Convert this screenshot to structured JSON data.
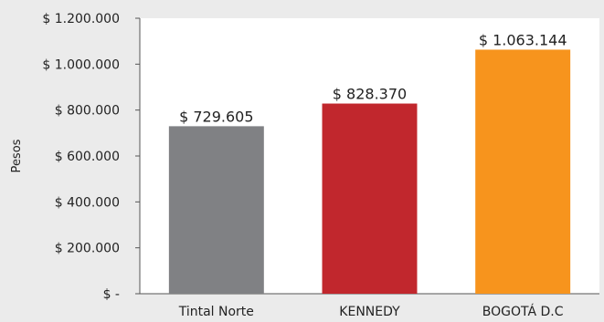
{
  "chart_data": {
    "type": "bar",
    "categories": [
      "Tintal Norte",
      "KENNEDY",
      "BOGOTÁ D.C"
    ],
    "values": [
      729605,
      828370,
      1063144
    ],
    "data_labels": [
      "$ 729.605",
      "$ 828.370",
      "$ 1.063.144"
    ],
    "colors": [
      "#808184",
      "#c1272d",
      "#f7941d"
    ],
    "title": "",
    "xlabel": "",
    "ylabel": "Pesos",
    "ylim": [
      0,
      1200000
    ],
    "yticks": [
      {
        "value": 0,
        "label": "$ -"
      },
      {
        "value": 200000,
        "label": "$ 200.000"
      },
      {
        "value": 400000,
        "label": "$ 400.000"
      },
      {
        "value": 600000,
        "label": "$ 600.000"
      },
      {
        "value": 800000,
        "label": "$ 800.000"
      },
      {
        "value": 1000000,
        "label": "$ 1.000.000"
      },
      {
        "value": 1200000,
        "label": "$ 1.200.000"
      }
    ],
    "grid": false,
    "legend": "none"
  }
}
